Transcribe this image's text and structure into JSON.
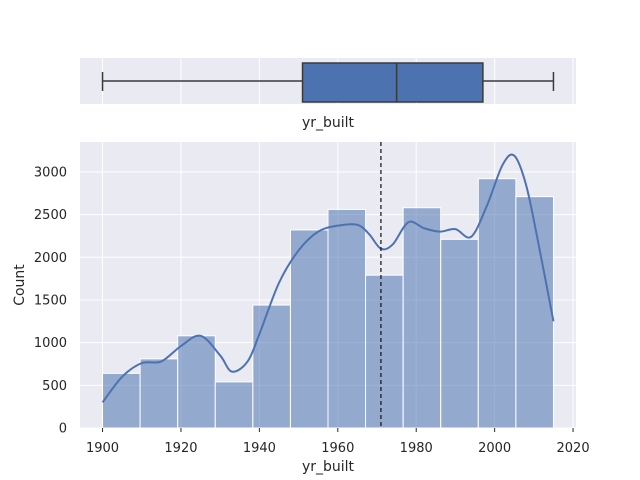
{
  "chart_data": [
    {
      "type": "box",
      "xlabel": "yr_built",
      "xlim": [
        1894.25,
        2020.75
      ],
      "min": 1900,
      "q1": 1951,
      "median": 1975,
      "q3": 1997,
      "max": 2015,
      "grid": true,
      "colors": {
        "box": "#4c72b0",
        "line": "#3a3a3a",
        "background": "#eaeaf2",
        "grid": "#ffffff"
      }
    },
    {
      "type": "bar",
      "subtype": "histogram_with_kde",
      "xlabel": "yr_built",
      "ylabel": "Count",
      "xlim": [
        1894.25,
        2020.75
      ],
      "ylim": [
        0,
        3350
      ],
      "xticks": [
        "1900",
        "1920",
        "1940",
        "1960",
        "1980",
        "2000",
        "2020"
      ],
      "yticks": [
        "0",
        "500",
        "1000",
        "1500",
        "2000",
        "2500",
        "3000"
      ],
      "bins": [
        {
          "start": 1900.0,
          "end": 1909.58,
          "value": 640
        },
        {
          "start": 1909.58,
          "end": 1919.17,
          "value": 810
        },
        {
          "start": 1919.17,
          "end": 1928.75,
          "value": 1080
        },
        {
          "start": 1928.75,
          "end": 1938.33,
          "value": 540
        },
        {
          "start": 1938.33,
          "end": 1947.92,
          "value": 1440
        },
        {
          "start": 1947.92,
          "end": 1957.5,
          "value": 2320
        },
        {
          "start": 1957.5,
          "end": 1967.08,
          "value": 2560
        },
        {
          "start": 1967.08,
          "end": 1976.67,
          "value": 1790
        },
        {
          "start": 1976.67,
          "end": 1986.25,
          "value": 2580
        },
        {
          "start": 1986.25,
          "end": 1995.83,
          "value": 2210
        },
        {
          "start": 1995.83,
          "end": 2005.42,
          "value": 2920
        },
        {
          "start": 2005.42,
          "end": 2015.0,
          "value": 2710
        }
      ],
      "kde": {
        "x": [
          1900,
          1905,
          1910,
          1915,
          1920,
          1925,
          1930,
          1933,
          1937,
          1940,
          1945,
          1950,
          1955,
          1960,
          1965,
          1968,
          1971,
          1974,
          1978,
          1982,
          1986,
          1990,
          1994,
          1998,
          2002,
          2005,
          2008,
          2011,
          2015
        ],
        "y": [
          300,
          600,
          760,
          780,
          960,
          1080,
          850,
          660,
          780,
          1100,
          1700,
          2080,
          2300,
          2370,
          2380,
          2270,
          2100,
          2150,
          2410,
          2340,
          2300,
          2330,
          2240,
          2600,
          3080,
          3190,
          2850,
          2200,
          1250
        ]
      },
      "mean_line": 1971,
      "grid": true,
      "colors": {
        "bar": "#4c72b0",
        "bar_alpha": "0.55",
        "kde": "#4c72b0",
        "mean_line": "#111111",
        "background": "#eaeaf2",
        "grid": "#ffffff"
      }
    }
  ]
}
